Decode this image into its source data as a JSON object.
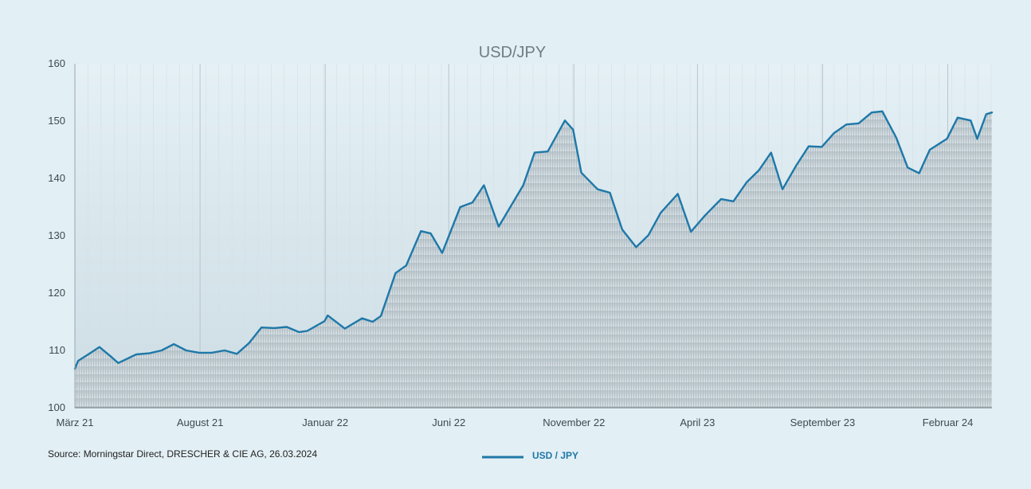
{
  "chart_data": {
    "type": "line",
    "title": "USD/JPY",
    "xlabel": "",
    "ylabel": "",
    "ylim": [
      100,
      160
    ],
    "y_ticks": [
      100,
      110,
      120,
      130,
      140,
      150,
      160
    ],
    "x_tick_labels": [
      "März 21",
      "August 21",
      "Januar 22",
      "Juni 22",
      "November 22",
      "April 23",
      "September 23",
      "Februar 24"
    ],
    "x_range": [
      "2021-03-01",
      "2024-03-26"
    ],
    "x_ticks": [
      "2021-03-01",
      "2021-08-01",
      "2022-01-01",
      "2022-06-01",
      "2022-11-01",
      "2023-04-01",
      "2023-09-01",
      "2024-02-01"
    ],
    "grid": "vertical",
    "fill": "area",
    "series": [
      {
        "name": "USD / JPY",
        "color": "#1e78a8",
        "fill_color": "#c9d3d8",
        "points": [
          [
            "2021-03-01",
            106.8
          ],
          [
            "2021-03-05",
            108.2
          ],
          [
            "2021-03-15",
            109.1
          ],
          [
            "2021-03-31",
            110.6
          ],
          [
            "2021-04-15",
            108.8
          ],
          [
            "2021-04-23",
            107.8
          ],
          [
            "2021-05-15",
            109.3
          ],
          [
            "2021-05-31",
            109.5
          ],
          [
            "2021-06-15",
            110.0
          ],
          [
            "2021-06-30",
            111.1
          ],
          [
            "2021-07-15",
            110.0
          ],
          [
            "2021-07-31",
            109.6
          ],
          [
            "2021-08-15",
            109.6
          ],
          [
            "2021-08-31",
            110.0
          ],
          [
            "2021-09-15",
            109.4
          ],
          [
            "2021-09-30",
            111.3
          ],
          [
            "2021-10-15",
            114.0
          ],
          [
            "2021-10-31",
            113.9
          ],
          [
            "2021-11-15",
            114.1
          ],
          [
            "2021-11-30",
            113.2
          ],
          [
            "2021-12-10",
            113.4
          ],
          [
            "2021-12-31",
            115.1
          ],
          [
            "2022-01-04",
            116.1
          ],
          [
            "2022-01-25",
            113.8
          ],
          [
            "2022-02-15",
            115.6
          ],
          [
            "2022-02-28",
            115.0
          ],
          [
            "2022-03-10",
            116.0
          ],
          [
            "2022-03-28",
            123.5
          ],
          [
            "2022-04-10",
            124.8
          ],
          [
            "2022-04-28",
            130.8
          ],
          [
            "2022-05-10",
            130.4
          ],
          [
            "2022-05-24",
            127.0
          ],
          [
            "2022-06-15",
            135.0
          ],
          [
            "2022-06-30",
            135.8
          ],
          [
            "2022-07-14",
            138.8
          ],
          [
            "2022-08-01",
            131.6
          ],
          [
            "2022-08-31",
            138.8
          ],
          [
            "2022-09-14",
            144.5
          ],
          [
            "2022-09-30",
            144.7
          ],
          [
            "2022-10-21",
            150.1
          ],
          [
            "2022-10-31",
            148.5
          ],
          [
            "2022-11-10",
            141.0
          ],
          [
            "2022-11-30",
            138.1
          ],
          [
            "2022-12-15",
            137.5
          ],
          [
            "2022-12-30",
            131.1
          ],
          [
            "2023-01-16",
            128.0
          ],
          [
            "2023-01-31",
            130.1
          ],
          [
            "2023-02-15",
            134.0
          ],
          [
            "2023-03-08",
            137.3
          ],
          [
            "2023-03-24",
            130.7
          ],
          [
            "2023-04-10",
            133.5
          ],
          [
            "2023-04-30",
            136.4
          ],
          [
            "2023-05-15",
            136.0
          ],
          [
            "2023-05-31",
            139.3
          ],
          [
            "2023-06-15",
            141.4
          ],
          [
            "2023-06-30",
            144.5
          ],
          [
            "2023-07-14",
            138.1
          ],
          [
            "2023-07-31",
            142.3
          ],
          [
            "2023-08-15",
            145.6
          ],
          [
            "2023-08-31",
            145.5
          ],
          [
            "2023-09-15",
            147.9
          ],
          [
            "2023-09-30",
            149.4
          ],
          [
            "2023-10-15",
            149.6
          ],
          [
            "2023-10-31",
            151.5
          ],
          [
            "2023-11-13",
            151.7
          ],
          [
            "2023-11-30",
            147.1
          ],
          [
            "2023-12-14",
            141.9
          ],
          [
            "2023-12-28",
            140.9
          ],
          [
            "2024-01-10",
            145.0
          ],
          [
            "2024-01-31",
            146.9
          ],
          [
            "2024-02-13",
            150.6
          ],
          [
            "2024-02-29",
            150.1
          ],
          [
            "2024-03-08",
            146.9
          ],
          [
            "2024-03-19",
            151.2
          ],
          [
            "2024-03-26",
            151.5
          ]
        ]
      }
    ]
  },
  "source_text": "Source: Morningstar Direct, DRESCHER & CIE AG, 26.03.2024",
  "legend": {
    "label": "USD / JPY",
    "placement": "bottom-center"
  }
}
